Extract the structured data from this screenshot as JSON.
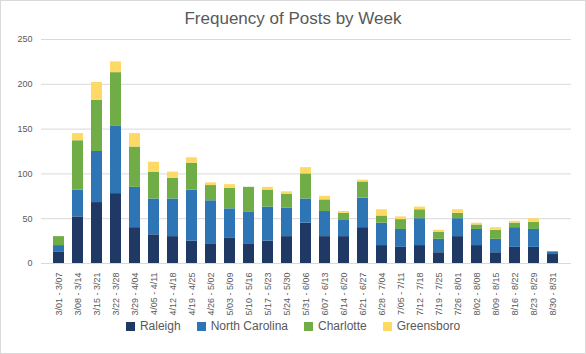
{
  "chart_data": {
    "type": "bar",
    "title": "Frequency of Posts by Week",
    "stacked": true,
    "grid": true,
    "legend": "bottom",
    "categories": [
      "3/01 - 3/07",
      "3/08 - 3/14",
      "3/15 - 3/21",
      "3/22 - 3/28",
      "3/29 - 4/04",
      "4/05 - 4/11",
      "4/12 - 4/18",
      "4/19 - 4/25",
      "4/26 - 5/02",
      "5/03 - 5/09",
      "5/10 - 5/16",
      "5/17 - 5/23",
      "5/24 - 5/30",
      "5/31 - 6/06",
      "6/07 - 6/13",
      "6/14 - 6/20",
      "6/21 - 6/27",
      "6/28 - 7/04",
      "7/05 - 7/11",
      "7/12 - 7/18",
      "7/19 - 7/25",
      "7/26 - 8/01",
      "8/02 - 8/08",
      "8/09 - 8/15",
      "8/16 - 8/22",
      "8/23 - 8/29",
      "8/30 - 8/31"
    ],
    "series": [
      {
        "name": "Raleigh",
        "color": "#203864",
        "values": [
          13,
          52,
          68,
          78,
          40,
          32,
          30,
          25,
          22,
          28,
          22,
          25,
          30,
          45,
          30,
          30,
          40,
          20,
          18,
          20,
          12,
          30,
          20,
          12,
          18,
          18,
          10
        ]
      },
      {
        "name": "North Carolina",
        "color": "#2e75b6",
        "values": [
          7,
          30,
          57,
          75,
          45,
          40,
          42,
          57,
          48,
          33,
          35,
          38,
          32,
          27,
          28,
          18,
          33,
          25,
          20,
          30,
          15,
          20,
          18,
          15,
          22,
          20,
          3
        ]
      },
      {
        "name": "Charlotte",
        "color": "#70ad47",
        "values": [
          10,
          55,
          57,
          60,
          45,
          30,
          23,
          30,
          17,
          23,
          28,
          19,
          15,
          28,
          13,
          8,
          18,
          8,
          11,
          10,
          8,
          6,
          5,
          10,
          5,
          8,
          0
        ]
      },
      {
        "name": "Greensboro",
        "color": "#ffd966",
        "values": [
          0,
          8,
          20,
          12,
          15,
          11,
          7,
          6,
          3,
          4,
          0,
          3,
          3,
          7,
          4,
          2,
          2,
          7,
          3,
          3,
          2,
          4,
          2,
          3,
          2,
          4,
          0
        ]
      }
    ],
    "ylim": [
      0,
      250
    ],
    "yticks": [
      0,
      50,
      100,
      150,
      200,
      250
    ]
  }
}
